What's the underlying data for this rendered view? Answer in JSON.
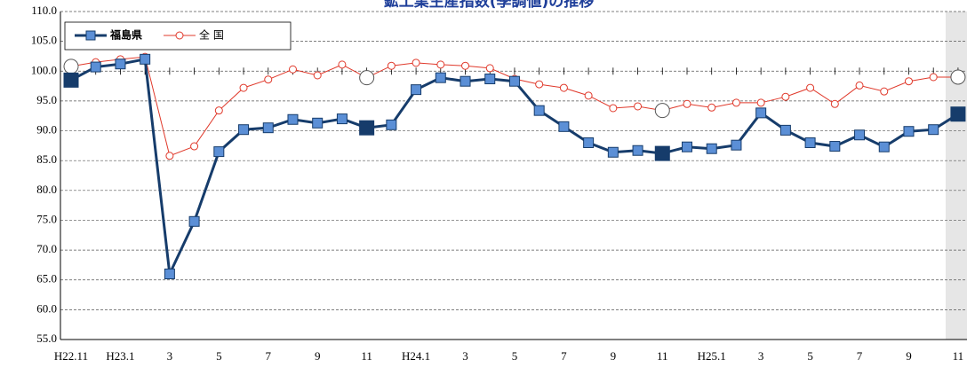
{
  "chart_data": {
    "type": "line",
    "title": "鉱工業生産指数(季調値)の推移",
    "categories": [
      "H22.11",
      null,
      "H23.1",
      null,
      "3",
      null,
      "5",
      null,
      "7",
      null,
      "9",
      null,
      "11",
      null,
      "H24.1",
      null,
      "3",
      null,
      "5",
      null,
      "7",
      null,
      "9",
      null,
      "11",
      null,
      "H25.1",
      null,
      "3",
      null,
      "5",
      null,
      "7",
      null,
      "9",
      null,
      "11"
    ],
    "series": [
      {
        "name": "福島県",
        "color": "#163c6b",
        "marker_color": "#5b8fd6",
        "values": [
          98.5,
          100.7,
          101.2,
          102.0,
          66.0,
          74.8,
          86.5,
          90.2,
          90.5,
          91.9,
          91.3,
          92.0,
          90.5,
          91.0,
          96.9,
          98.9,
          98.3,
          98.7,
          98.3,
          93.4,
          90.7,
          88.0,
          86.4,
          86.7,
          86.2,
          87.3,
          87.0,
          87.6,
          93.0,
          90.1,
          88.0,
          87.4,
          89.3,
          87.3,
          89.9,
          90.2,
          92.8
        ]
      },
      {
        "name": "全 国",
        "color": "#e0392b",
        "marker_color": "#ffffff",
        "values": [
          100.8,
          101.5,
          102.0,
          102.4,
          85.8,
          87.4,
          93.4,
          97.2,
          98.6,
          100.3,
          99.3,
          101.1,
          98.9,
          100.9,
          101.4,
          101.1,
          100.9,
          100.5,
          98.7,
          97.8,
          97.2,
          95.9,
          93.8,
          94.1,
          93.4,
          94.5,
          93.9,
          94.7,
          94.7,
          95.7,
          97.2,
          94.5,
          97.6,
          96.6,
          98.3,
          99.0,
          99.0
        ]
      }
    ],
    "ylim": [
      55,
      110
    ],
    "yticks": [
      {
        "value": 55,
        "label": "55.0"
      },
      {
        "value": 60,
        "label": "60.0"
      },
      {
        "value": 65,
        "label": "65.0"
      },
      {
        "value": 70,
        "label": "70.0"
      },
      {
        "value": 75,
        "label": "75.0"
      },
      {
        "value": 80,
        "label": "80.0"
      },
      {
        "value": 85,
        "label": "85.0"
      },
      {
        "value": 90,
        "label": "90.0"
      },
      {
        "value": 95,
        "label": "95.0"
      },
      {
        "value": 100,
        "label": "100.0"
      },
      {
        "value": 105,
        "label": "105.0"
      },
      {
        "value": 110,
        "label": "110.0"
      }
    ],
    "grid": true,
    "legend": "upper left"
  }
}
